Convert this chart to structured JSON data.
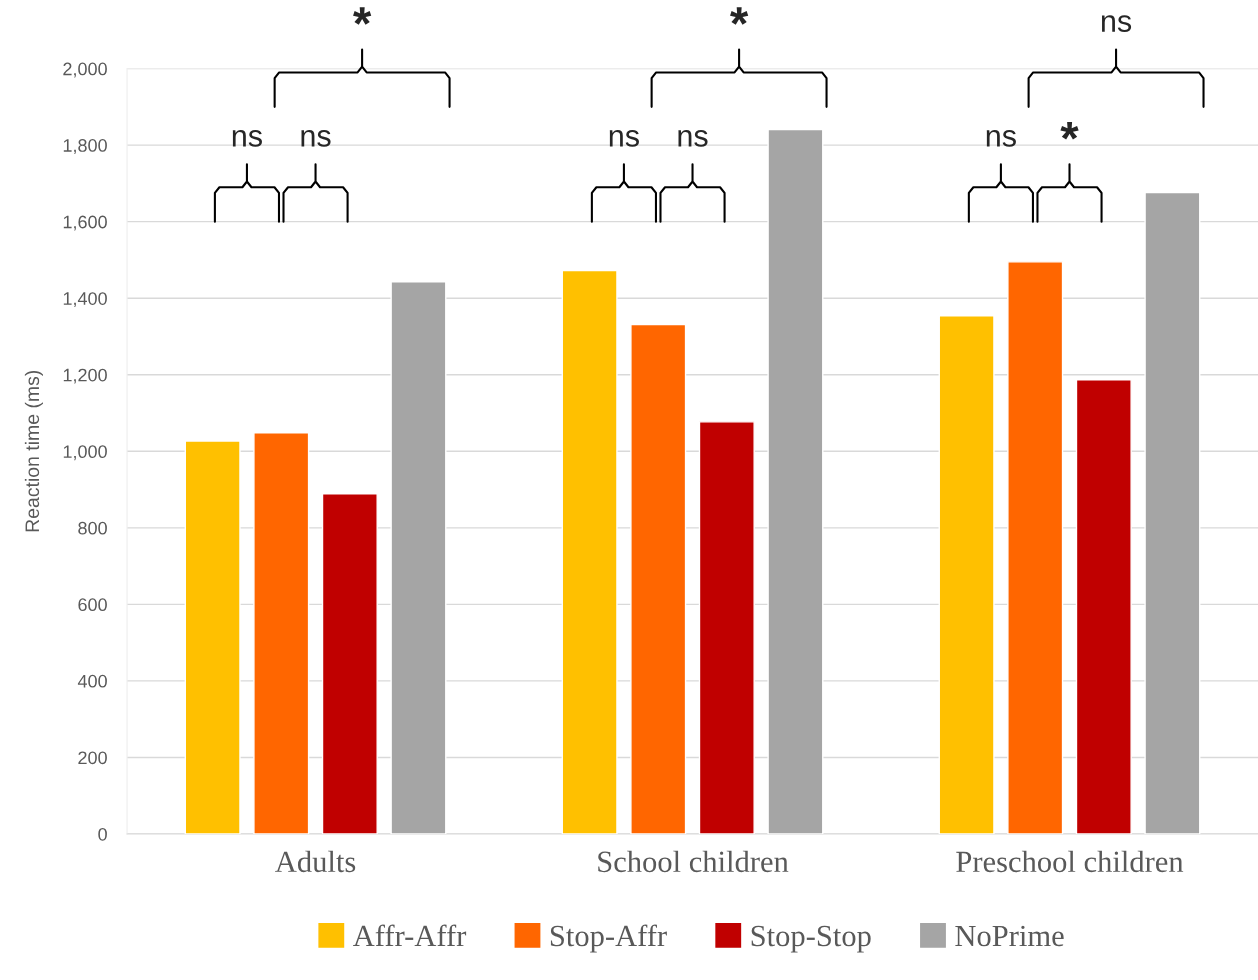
{
  "chart_data": {
    "type": "bar",
    "ylabel": "Reaction time (ms)",
    "categories": [
      "Adults",
      "School children",
      "Preschool children"
    ],
    "series": [
      {
        "name": "Affr-Affr",
        "color": "#ffc000",
        "values": [
          1027,
          1472,
          1354
        ]
      },
      {
        "name": "Stop-Affr",
        "color": "#ff6600",
        "values": [
          1048,
          1331,
          1495
        ]
      },
      {
        "name": "Stop-Stop",
        "color": "#c00000",
        "values": [
          889,
          1077,
          1187
        ]
      },
      {
        "name": "NoPrime",
        "color": "#a5a5a5",
        "values": [
          1443,
          1841,
          1676
        ]
      }
    ],
    "ylim": [
      0,
      2000
    ],
    "yticks": [
      {
        "value": 0,
        "label": "0"
      },
      {
        "value": 200,
        "label": "200"
      },
      {
        "value": 400,
        "label": "400"
      },
      {
        "value": 600,
        "label": "600"
      },
      {
        "value": 800,
        "label": "800"
      },
      {
        "value": 1000,
        "label": "1,000"
      },
      {
        "value": 1200,
        "label": "1,200"
      },
      {
        "value": 1400,
        "label": "1,400"
      },
      {
        "value": 1600,
        "label": "1,600"
      },
      {
        "value": 1800,
        "label": "1,800"
      },
      {
        "value": 2000,
        "label": "2,000"
      }
    ],
    "grid": "y",
    "legend": "bottom",
    "annotations": [
      "ns",
      "ns",
      "*",
      "ns",
      "ns",
      "*",
      "ns",
      "*",
      "ns"
    ]
  }
}
